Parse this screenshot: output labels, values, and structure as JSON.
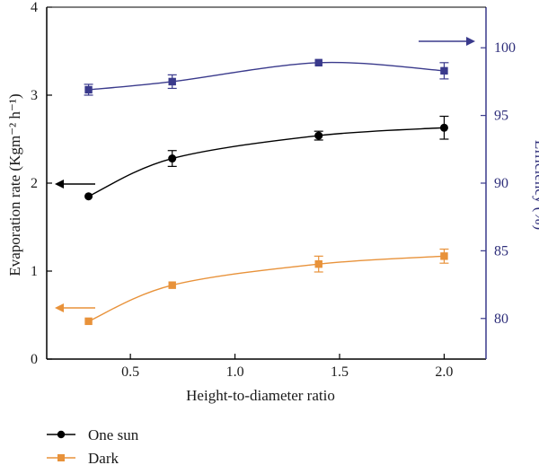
{
  "chart_data": {
    "type": "line",
    "x_label": "Height-to-diameter ratio",
    "y_label_left": "Evaporation rate (Kgm⁻² h⁻¹)",
    "y_label_right": "Efficiency (%)",
    "x_range": [
      0.1,
      2.2
    ],
    "y_left_range": [
      0,
      4
    ],
    "y_right_range": [
      77,
      103
    ],
    "x_ticks": [
      "0.5",
      "1.0",
      "1.5",
      "2.0"
    ],
    "y_left_ticks": [
      "0",
      "1",
      "2",
      "3",
      "4"
    ],
    "y_right_ticks": [
      "80",
      "85",
      "90",
      "95",
      "100"
    ],
    "grid": false,
    "legend_position": "bottom-left",
    "colors": {
      "one_sun": "#000000",
      "dark": "#e8923a",
      "efficiency": "#3a3a8c",
      "left_axis": "#000000",
      "right_axis": "#3a3a8c"
    },
    "series": [
      {
        "name": "One sun",
        "axis": "left",
        "marker": "circle",
        "x": [
          0.3,
          0.7,
          1.4,
          2.0
        ],
        "y": [
          1.85,
          2.28,
          2.54,
          2.63
        ],
        "err": [
          0.0,
          0.09,
          0.05,
          0.13
        ]
      },
      {
        "name": "Dark",
        "axis": "left",
        "marker": "square",
        "x": [
          0.3,
          0.7,
          1.4,
          2.0
        ],
        "y": [
          0.43,
          0.84,
          1.08,
          1.17
        ],
        "err": [
          0.0,
          0.0,
          0.09,
          0.08
        ]
      },
      {
        "axis": "right",
        "marker": "square",
        "x": [
          0.3,
          0.7,
          1.4,
          2.0
        ],
        "y": [
          96.9,
          97.5,
          98.9,
          98.3
        ],
        "err": [
          0.4,
          0.5,
          0.0,
          0.6
        ]
      }
    ]
  }
}
